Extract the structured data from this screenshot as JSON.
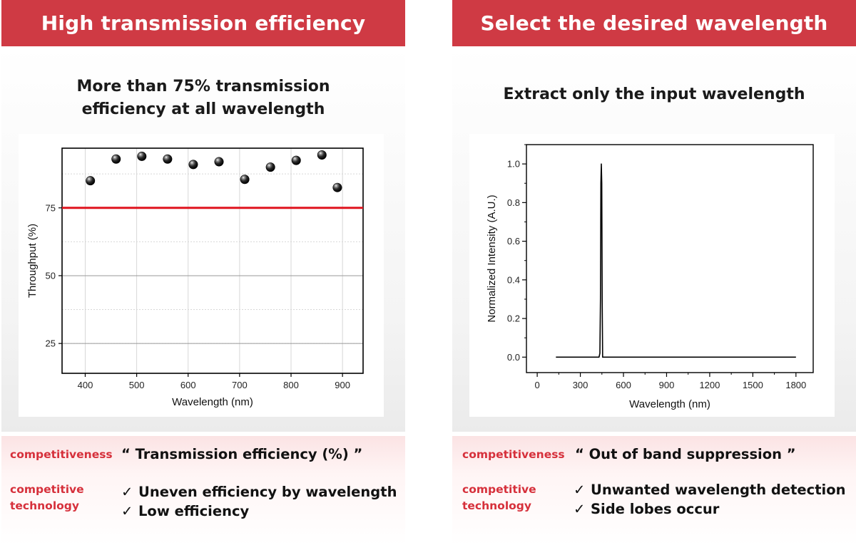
{
  "left": {
    "header": "High transmission efficiency",
    "subtitle_line1": "More than 75% transmission",
    "subtitle_line2": "efficiency at all wavelength",
    "competitiveness_label": "competitiveness",
    "competitiveness_value": "“ Transmission efficiency (%) ”",
    "competitive_label_line1": "competitive",
    "competitive_label_line2": "technology",
    "items": [
      "Uneven efficiency by wavelength",
      "Low efficiency"
    ]
  },
  "right": {
    "header": "Select the desired wavelength",
    "subtitle": "Extract only the input wavelength",
    "competitiveness_label": "competitiveness",
    "competitiveness_value": "“ Out of band suppression ”",
    "competitive_label_line1": "competitive",
    "competitive_label_line2": "technology",
    "items": [
      "Unwanted wavelength detection",
      "Side lobes occur"
    ]
  },
  "check_symbol": "✓",
  "colors": {
    "header_red": "#cf3a44",
    "label_red": "#d6303b",
    "threshold_line": "#e0141e"
  },
  "chart_data": [
    {
      "type": "scatter",
      "xlabel": "Wavelength (nm)",
      "ylabel": "Throughput (%)",
      "xlim": [
        355,
        940
      ],
      "ylim": [
        14,
        97
      ],
      "xticks": [
        400,
        500,
        600,
        700,
        800,
        900
      ],
      "yticks": [
        25,
        50,
        75
      ],
      "grid": true,
      "reference_line": {
        "y": 75,
        "color": "#e0141e"
      },
      "points": [
        {
          "x": 410,
          "y": 85
        },
        {
          "x": 460,
          "y": 93
        },
        {
          "x": 510,
          "y": 94
        },
        {
          "x": 560,
          "y": 93
        },
        {
          "x": 610,
          "y": 91
        },
        {
          "x": 660,
          "y": 92
        },
        {
          "x": 710,
          "y": 85.5
        },
        {
          "x": 760,
          "y": 90
        },
        {
          "x": 810,
          "y": 92.5
        },
        {
          "x": 860,
          "y": 94.5
        },
        {
          "x": 890,
          "y": 82.5
        }
      ]
    },
    {
      "type": "line",
      "xlabel": "Wavelength (nm)",
      "ylabel": "Normalized Intensity (A.U.)",
      "xlim": [
        -75,
        1920
      ],
      "ylim": [
        -0.08,
        1.1
      ],
      "xticks": [
        0,
        300,
        600,
        900,
        1200,
        1500,
        1800
      ],
      "yticks": [
        0.0,
        0.2,
        0.4,
        0.6,
        0.8,
        1.0
      ],
      "ytick_labels": [
        "0.0",
        "0.2",
        "0.4",
        "0.6",
        "0.8",
        "1.0"
      ],
      "grid": false,
      "series": [
        {
          "x": [
            130,
            430,
            436,
            440,
            443,
            446,
            449,
            452,
            455,
            1800
          ],
          "y": [
            0,
            0,
            0.02,
            0.3,
            0.9,
            1.0,
            0.9,
            0.3,
            0,
            0
          ]
        }
      ]
    }
  ]
}
